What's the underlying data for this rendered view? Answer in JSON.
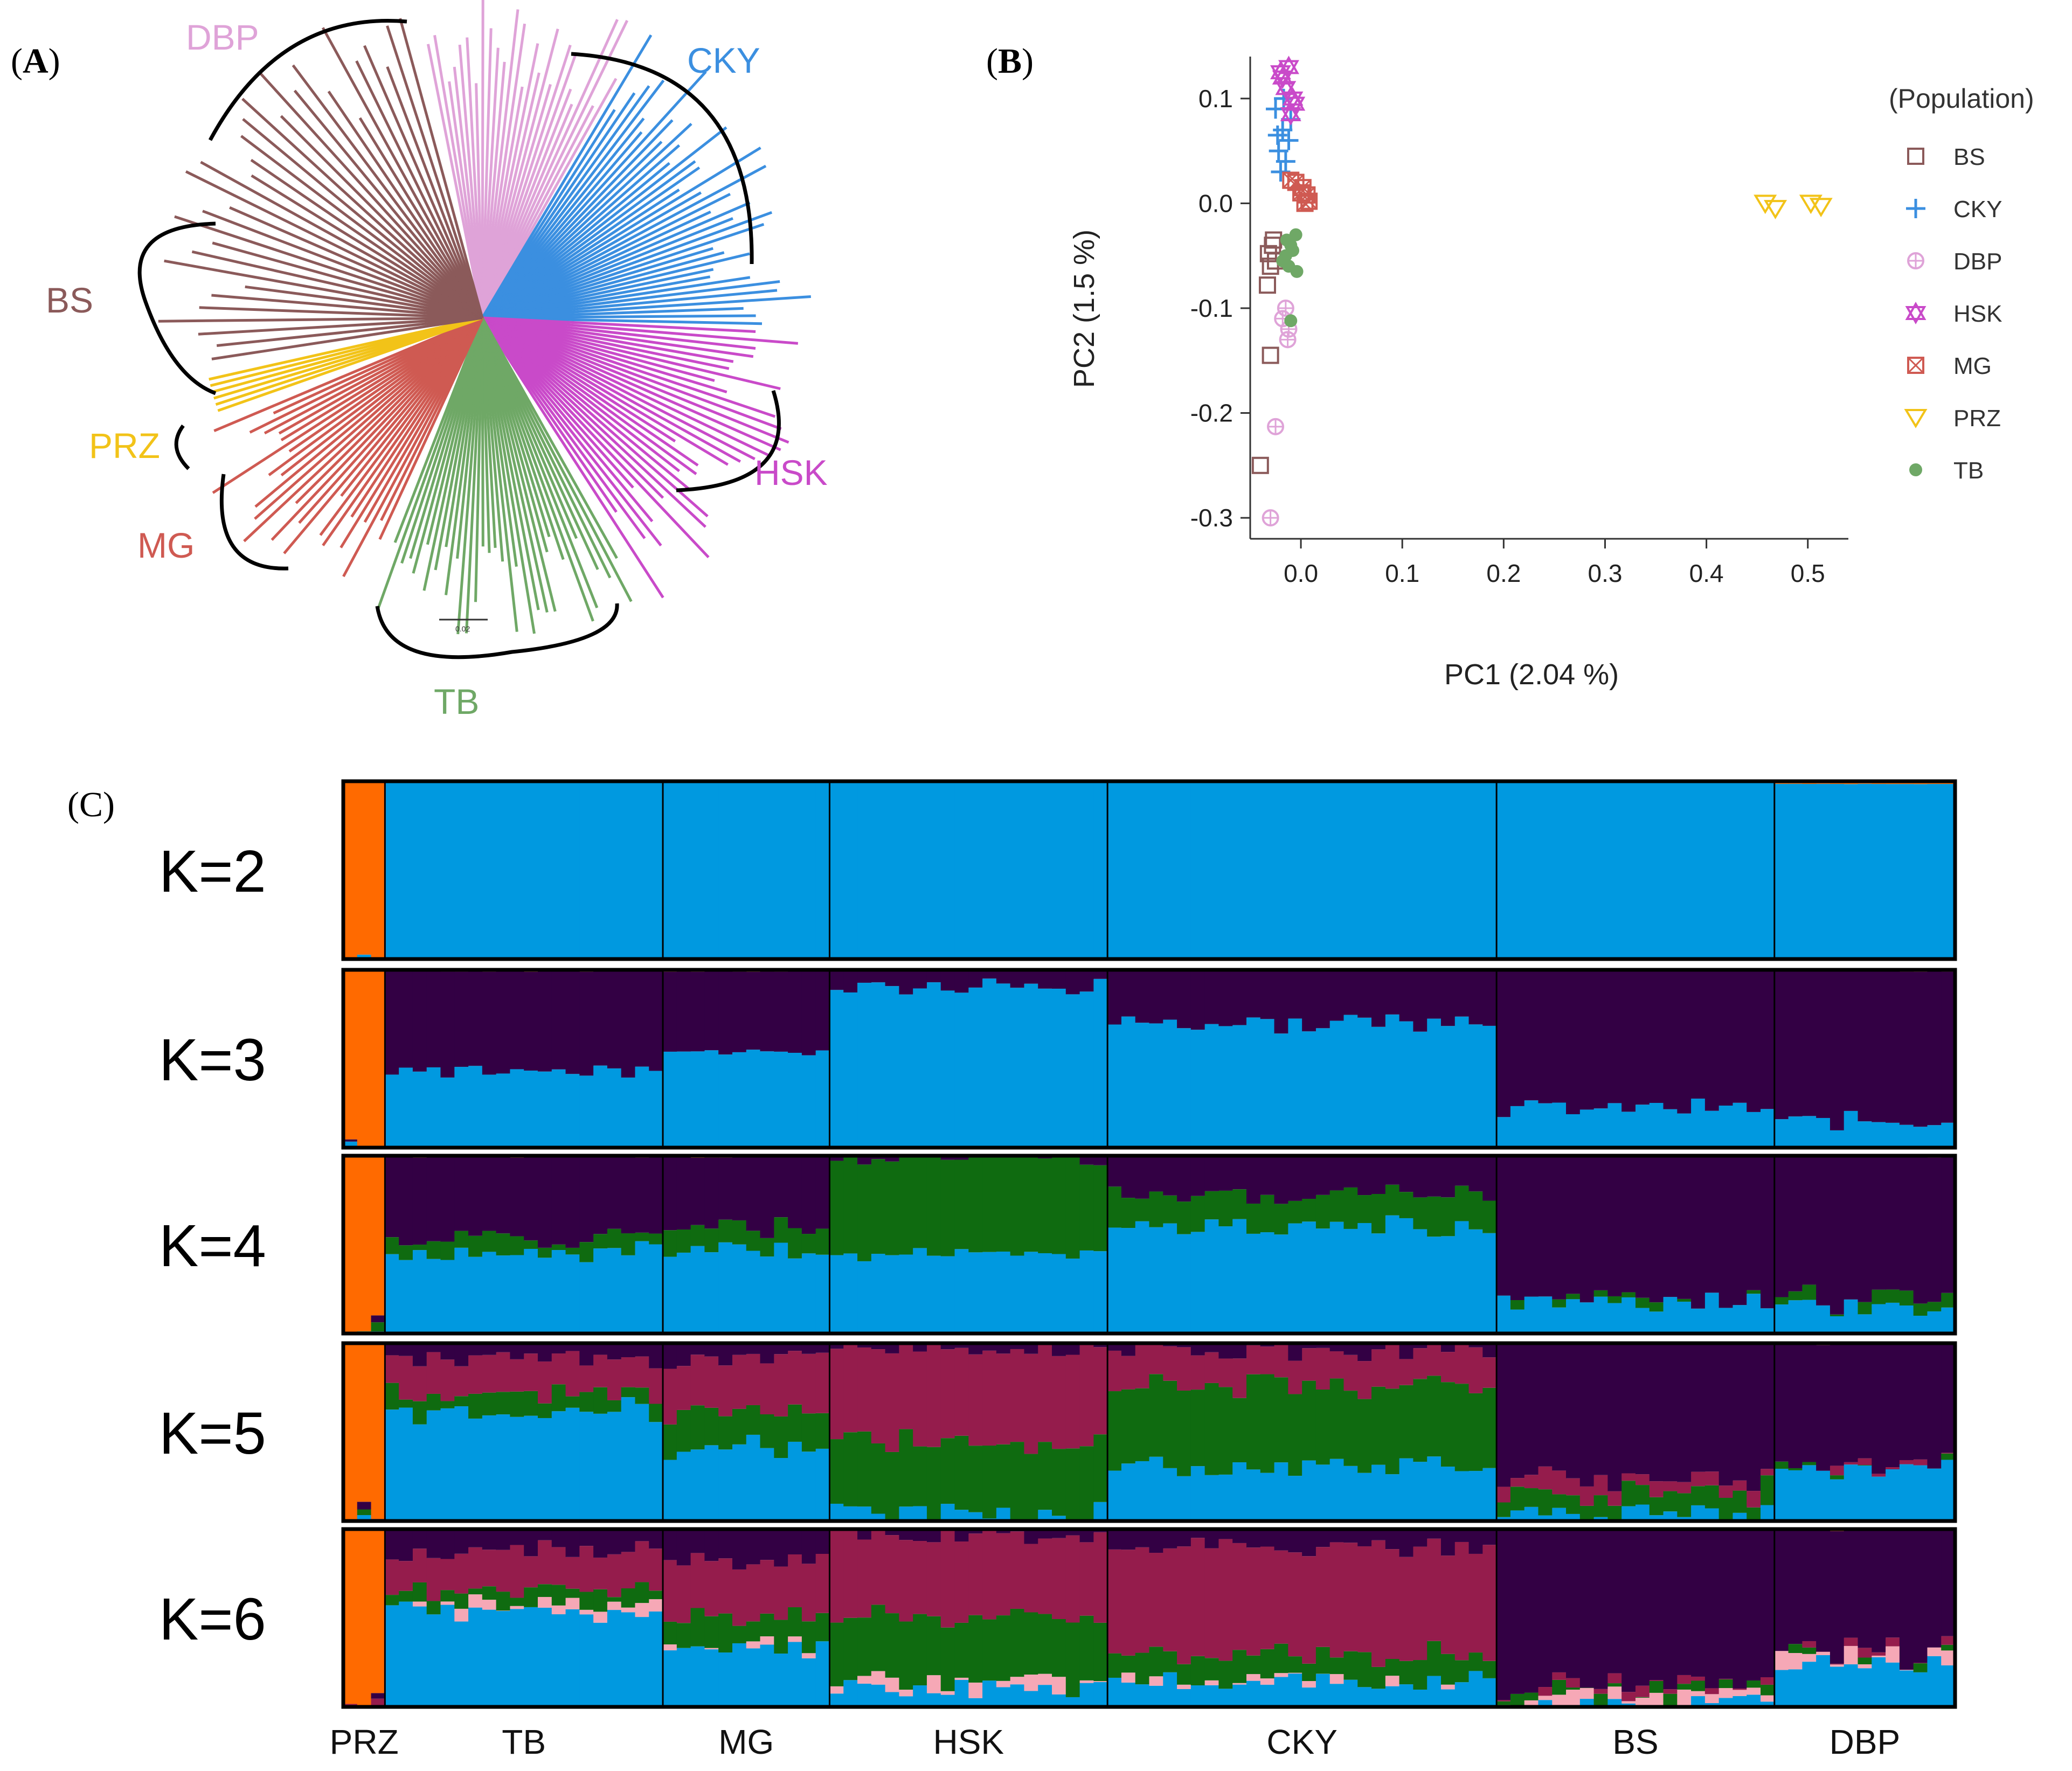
{
  "panels": {
    "a": "A",
    "b": "B",
    "c": "(C)"
  },
  "colors": {
    "BS": "#8b5a5a",
    "CKY": "#3b8fe0",
    "DBP": "#dfa3d8",
    "HSK": "#c94ac9",
    "MG": "#cf5a52",
    "PRZ": "#f2c318",
    "TB": "#6fa866",
    "orange": "#ff6a00",
    "blue": "#0099e0",
    "darkpurple": "#330044",
    "green": "#0f6b10",
    "maroon": "#951c4c",
    "pink": "#f6a8b6"
  },
  "tree": {
    "labels": [
      "DBP",
      "CKY",
      "BS",
      "PRZ",
      "HSK",
      "MG",
      "TB"
    ],
    "scale_label": "0.02",
    "clades": [
      {
        "name": "DBP",
        "from": 258,
        "to": 300,
        "count": 26
      },
      {
        "name": "CKY",
        "from": 300,
        "to": 362,
        "count": 38
      },
      {
        "name": "HSK",
        "from": 2,
        "to": 58,
        "count": 32
      },
      {
        "name": "TB",
        "from": 60,
        "to": 112,
        "count": 34
      },
      {
        "name": "MG",
        "from": 114,
        "to": 158,
        "count": 26
      },
      {
        "name": "PRZ",
        "from": 160,
        "to": 168,
        "count": 6
      },
      {
        "name": "BS",
        "from": 170,
        "to": 256,
        "count": 32
      }
    ]
  },
  "chart_data": [
    {
      "type": "scatter",
      "title": "",
      "xlabel": "PC1 (2.04 %)",
      "ylabel": "PC2 (1.5 %)",
      "xlim": [
        -0.05,
        0.54
      ],
      "ylim": [
        -0.32,
        0.14
      ],
      "xticks": [
        "0.0",
        "0.1",
        "0.2",
        "0.3",
        "0.4",
        "0.5"
      ],
      "yticks": [
        "0.1",
        "0.0",
        "-0.1",
        "-0.2",
        "-0.3"
      ],
      "legend_title": "(Population)",
      "legend_position": "right",
      "series": [
        {
          "name": "BS",
          "marker": "square",
          "points": [
            [
              -0.032,
              -0.048
            ],
            [
              -0.028,
              -0.04
            ],
            [
              -0.03,
              -0.06
            ],
            [
              -0.025,
              -0.055
            ],
            [
              -0.033,
              -0.078
            ],
            [
              -0.03,
              -0.145
            ],
            [
              -0.04,
              -0.25
            ],
            [
              -0.027,
              -0.035
            ]
          ]
        },
        {
          "name": "CKY",
          "marker": "plus",
          "points": [
            [
              -0.022,
              0.05
            ],
            [
              -0.018,
              0.07
            ],
            [
              -0.012,
              0.06
            ],
            [
              -0.025,
              0.09
            ],
            [
              -0.015,
              0.04
            ],
            [
              -0.02,
              0.03
            ],
            [
              -0.01,
              0.08
            ],
            [
              -0.017,
              0.1
            ],
            [
              -0.023,
              0.065
            ]
          ]
        },
        {
          "name": "DBP",
          "marker": "circle-plus",
          "points": [
            [
              -0.015,
              -0.1
            ],
            [
              -0.012,
              -0.12
            ],
            [
              -0.018,
              -0.11
            ],
            [
              -0.013,
              -0.13
            ],
            [
              -0.025,
              -0.213
            ],
            [
              -0.03,
              -0.3
            ]
          ]
        },
        {
          "name": "HSK",
          "marker": "star",
          "points": [
            [
              -0.012,
              0.13
            ],
            [
              -0.018,
              0.12
            ],
            [
              -0.008,
              0.1
            ],
            [
              -0.015,
              0.11
            ],
            [
              -0.01,
              0.085
            ],
            [
              -0.02,
              0.125
            ],
            [
              -0.006,
              0.095
            ]
          ]
        },
        {
          "name": "MG",
          "marker": "square-x",
          "points": [
            [
              -0.005,
              0.02
            ],
            [
              0.0,
              0.01
            ],
            [
              0.004,
              0.0
            ],
            [
              0.006,
              0.008
            ],
            [
              -0.01,
              0.022
            ],
            [
              0.002,
              0.015
            ],
            [
              0.008,
              0.002
            ]
          ]
        },
        {
          "name": "PRZ",
          "marker": "triangle-down",
          "points": [
            [
              0.458,
              0.0
            ],
            [
              0.468,
              -0.005
            ],
            [
              0.503,
              0.0
            ],
            [
              0.513,
              -0.003
            ]
          ]
        },
        {
          "name": "TB",
          "marker": "dot",
          "points": [
            [
              -0.01,
              -0.04
            ],
            [
              -0.015,
              -0.05
            ],
            [
              -0.005,
              -0.03
            ],
            [
              -0.012,
              -0.06
            ],
            [
              -0.008,
              -0.045
            ],
            [
              -0.018,
              -0.055
            ],
            [
              -0.004,
              -0.065
            ],
            [
              -0.014,
              -0.035
            ],
            [
              -0.01,
              -0.112
            ]
          ]
        }
      ]
    },
    {
      "type": "bar",
      "title": "",
      "stacked": true,
      "ylim": [
        0,
        1
      ],
      "populations": [
        "PRZ",
        "TB",
        "MG",
        "HSK",
        "CKY",
        "BS",
        "DBP"
      ],
      "population_sizes": [
        3,
        20,
        12,
        20,
        28,
        20,
        13
      ],
      "k_values": [
        "K=2",
        "K=3",
        "K=4",
        "K=5",
        "K=6"
      ],
      "cluster_colors": [
        "orange",
        "blue",
        "darkpurple",
        "green",
        "maroon",
        "pink"
      ],
      "profiles": {
        "K=2": {
          "PRZ": [
            1,
            0
          ],
          "TB": [
            0.01,
            0.99
          ],
          "MG": [
            0.01,
            0.99
          ],
          "HSK": [
            0.005,
            0.995
          ],
          "CKY": [
            0.005,
            0.995
          ],
          "BS": [
            0.005,
            0.995
          ],
          "DBP": [
            0.015,
            0.985
          ]
        },
        "K=3": {
          "PRZ": [
            1,
            0,
            0
          ],
          "TB": [
            0.01,
            0.43,
            0.56
          ],
          "MG": [
            0.01,
            0.55,
            0.44
          ],
          "HSK": [
            0,
            0.9,
            0.1
          ],
          "CKY": [
            0,
            0.7,
            0.3
          ],
          "BS": [
            0,
            0.22,
            0.78
          ],
          "DBP": [
            0.01,
            0.15,
            0.84
          ]
        },
        "K=4": {
          "PRZ": [
            1,
            0,
            0,
            0
          ],
          "TB": [
            0.01,
            0.46,
            0.45,
            0.08
          ],
          "MG": [
            0.01,
            0.46,
            0.38,
            0.15
          ],
          "HSK": [
            0,
            0.45,
            0,
            0.55
          ],
          "CKY": [
            0,
            0.6,
            0.22,
            0.18
          ],
          "BS": [
            0,
            0.18,
            0.82,
            0
          ],
          "DBP": [
            0.01,
            0.15,
            0.8,
            0.04
          ]
        },
        "K=5": {
          "PRZ": [
            1,
            0,
            0,
            0,
            0
          ],
          "TB": [
            0,
            0.6,
            0.1,
            0.1,
            0.2
          ],
          "MG": [
            0,
            0.4,
            0.1,
            0.2,
            0.3
          ],
          "HSK": [
            0,
            0.05,
            0.02,
            0.4,
            0.53
          ],
          "CKY": [
            0,
            0.3,
            0.05,
            0.45,
            0.2
          ],
          "BS": [
            0,
            0.04,
            0.76,
            0.12,
            0.08
          ],
          "DBP": [
            0.01,
            0.3,
            0.69,
            0,
            0
          ]
        },
        "K=6": {
          "PRZ": [
            1,
            0,
            0,
            0,
            0,
            0
          ],
          "TB": [
            0,
            0.55,
            0.12,
            0.08,
            0.22,
            0.03
          ],
          "MG": [
            0,
            0.35,
            0.17,
            0.15,
            0.33,
            0
          ],
          "HSK": [
            0,
            0.1,
            0.05,
            0.35,
            0.45,
            0.05
          ],
          "CKY": [
            0,
            0.15,
            0.1,
            0.15,
            0.6,
            0
          ],
          "BS": [
            0,
            0.02,
            0.88,
            0.03,
            0.02,
            0.05
          ],
          "DBP": [
            0.01,
            0.25,
            0.69,
            0,
            0,
            0.05
          ]
        }
      }
    }
  ]
}
